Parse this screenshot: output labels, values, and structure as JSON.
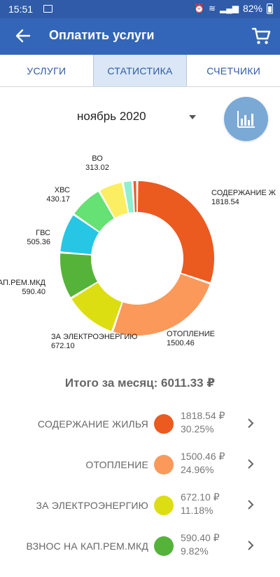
{
  "status_bar": {
    "time": "15:51",
    "battery": "82%",
    "icons": [
      "image-icon",
      "alarm-icon",
      "wifi-icon",
      "signal-icon",
      "battery-icon"
    ]
  },
  "app_bar": {
    "title": "Оплатить услуги",
    "back_icon": "arrow-left-icon",
    "cart_icon": "cart-icon"
  },
  "tabs": [
    {
      "label": "УСЛУГИ",
      "active": false
    },
    {
      "label": "СТАТИСТИКА",
      "active": true
    },
    {
      "label": "СЧЕТЧИКИ",
      "active": false
    }
  ],
  "month": "ноябрь 2020",
  "chart_toggle_icon": "bar-chart-icon",
  "chart_data": {
    "type": "pie",
    "donut": true,
    "labels": [
      "СОДЕРЖАНИЕ Ж",
      "ОТОПЛЕНИЕ",
      "ЗА ЭЛЕКТРОЭНЕРГИЮ",
      "КАП.РЕМ.МКД",
      "ГВС",
      "ХВС",
      "ВО",
      "",
      ""
    ],
    "values": [
      1818.54,
      1500.46,
      672.1,
      590.4,
      505.36,
      430.17,
      313.02,
      121.0,
      60.28
    ],
    "value_labels": [
      "1818.54",
      "1500.46",
      "672.10",
      "590.40",
      "505.36",
      "430.17",
      "313.02",
      "",
      ""
    ],
    "colors": [
      "#eb5a1f",
      "#fb995b",
      "#dcde12",
      "#55b33a",
      "#27c6e4",
      "#66e173",
      "#fbee62",
      "#8ef0cf",
      "#e8602f"
    ]
  },
  "total_label": "Итого за месяц: 6011.33 ₽",
  "breakdown": [
    {
      "name": "СОДЕРЖАНИЕ ЖИЛЬЯ",
      "amount": "1818.54 ₽",
      "percent": "30.25%",
      "color": "#eb5a1f"
    },
    {
      "name": "ОТОПЛЕНИЕ",
      "amount": "1500.46 ₽",
      "percent": "24.96%",
      "color": "#fb995b"
    },
    {
      "name": "ЗА ЭЛЕКТРОЭНЕРГИЮ",
      "amount": "672.10 ₽",
      "percent": "11.18%",
      "color": "#dcde12"
    },
    {
      "name": "ВЗНОС НА КАП.РЕМ.МКД",
      "amount": "590.40 ₽",
      "percent": "9.82%",
      "color": "#55b33a"
    }
  ]
}
